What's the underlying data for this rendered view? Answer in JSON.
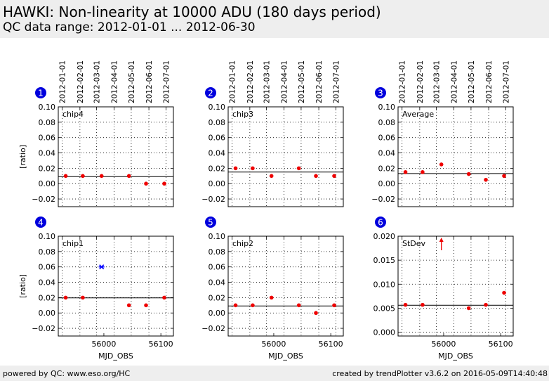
{
  "header": {
    "title": "HAWKI: Non-linearity at 10000 ADU (180 days period)",
    "subtitle": "QC data range: 2012-01-01 ... 2012-06-30"
  },
  "footer": {
    "left": "powered by QC: www.eso.org/HC",
    "right": "created by trendPlotter v3.6.2 on 2016-05-09T14:40:48"
  },
  "colors": {
    "badge": "#0000dd",
    "point": "#ee0000",
    "outlier": "#0000ff",
    "reference": "#000000"
  },
  "date_ticks": {
    "labels": [
      "2012-01-01",
      "2012-02-01",
      "2012-03-01",
      "2012-04-01",
      "2012-05-01",
      "2012-06-01",
      "2012-07-01"
    ],
    "mjd": [
      55927,
      55958,
      55987,
      56018,
      56048,
      56079,
      56109
    ]
  },
  "xlabel": "MJD_OBS",
  "chart_data": [
    {
      "type": "scatter",
      "panel": "1",
      "series_label": "chip4",
      "ylabel": "[ratio]",
      "xlim": [
        55920,
        56122
      ],
      "ylim": [
        -0.03,
        0.1
      ],
      "yticks": [
        -0.02,
        0.0,
        0.02,
        0.04,
        0.06,
        0.08,
        0.1
      ],
      "ytick_labels": [
        "−0.02",
        "0.00",
        "0.02",
        "0.04",
        "0.06",
        "0.08",
        "0.10"
      ],
      "xticks": [],
      "xtick_labels": [],
      "reference_line": 0.0091,
      "points": [
        {
          "x": 55933,
          "y": 0.01
        },
        {
          "x": 55963,
          "y": 0.01
        },
        {
          "x": 55996,
          "y": 0.01
        },
        {
          "x": 56044,
          "y": 0.01
        },
        {
          "x": 56074,
          "y": 0.0
        },
        {
          "x": 56106,
          "y": 0.0
        }
      ],
      "outliers": []
    },
    {
      "type": "scatter",
      "panel": "2",
      "series_label": "chip3",
      "ylabel": "",
      "xlim": [
        55920,
        56122
      ],
      "ylim": [
        -0.03,
        0.1
      ],
      "yticks": [
        -0.02,
        0.0,
        0.02,
        0.04,
        0.06,
        0.08,
        0.1
      ],
      "ytick_labels": [
        "−0.02",
        "0.00",
        "0.02",
        "0.04",
        "0.06",
        "0.08",
        "0.10"
      ],
      "xticks": [],
      "xtick_labels": [],
      "reference_line": 0.0151,
      "points": [
        {
          "x": 55933,
          "y": 0.02
        },
        {
          "x": 55963,
          "y": 0.02
        },
        {
          "x": 55996,
          "y": 0.01
        },
        {
          "x": 56044,
          "y": 0.02
        },
        {
          "x": 56074,
          "y": 0.01
        },
        {
          "x": 56106,
          "y": 0.01
        }
      ],
      "outliers": []
    },
    {
      "type": "scatter",
      "panel": "3",
      "series_label": "Average",
      "ylabel": "",
      "xlim": [
        55920,
        56122
      ],
      "ylim": [
        -0.03,
        0.1
      ],
      "yticks": [
        -0.02,
        0.0,
        0.02,
        0.04,
        0.06,
        0.08,
        0.1
      ],
      "ytick_labels": [
        "−0.02",
        "0.00",
        "0.02",
        "0.04",
        "0.06",
        "0.08",
        "0.10"
      ],
      "xticks": [],
      "xtick_labels": [],
      "reference_line": 0.0131,
      "points": [
        {
          "x": 55933,
          "y": 0.015
        },
        {
          "x": 55963,
          "y": 0.015
        },
        {
          "x": 55996,
          "y": 0.025
        },
        {
          "x": 56044,
          "y": 0.0125
        },
        {
          "x": 56074,
          "y": 0.005
        },
        {
          "x": 56106,
          "y": 0.01
        }
      ],
      "outliers": []
    },
    {
      "type": "scatter",
      "panel": "4",
      "series_label": "chip1",
      "ylabel": "[ratio]",
      "xlim": [
        55920,
        56122
      ],
      "ylim": [
        -0.03,
        0.1
      ],
      "yticks": [
        -0.02,
        0.0,
        0.02,
        0.04,
        0.06,
        0.08,
        0.1
      ],
      "ytick_labels": [
        "−0.02",
        "0.00",
        "0.02",
        "0.04",
        "0.06",
        "0.08",
        "0.10"
      ],
      "xticks": [
        56000,
        56100
      ],
      "xtick_labels": [
        "56000",
        "56100"
      ],
      "reference_line": 0.0197,
      "points": [
        {
          "x": 55933,
          "y": 0.02
        },
        {
          "x": 55963,
          "y": 0.02
        },
        {
          "x": 56044,
          "y": 0.01
        },
        {
          "x": 56074,
          "y": 0.01
        },
        {
          "x": 56106,
          "y": 0.02
        }
      ],
      "outliers": [
        {
          "x": 55996,
          "y": 0.06
        }
      ]
    },
    {
      "type": "scatter",
      "panel": "5",
      "series_label": "chip2",
      "ylabel": "",
      "xlim": [
        55920,
        56122
      ],
      "ylim": [
        -0.03,
        0.1
      ],
      "yticks": [
        -0.02,
        0.0,
        0.02,
        0.04,
        0.06,
        0.08,
        0.1
      ],
      "ytick_labels": [
        "−0.02",
        "0.00",
        "0.02",
        "0.04",
        "0.06",
        "0.08",
        "0.10"
      ],
      "xticks": [
        56000,
        56100
      ],
      "xtick_labels": [
        "56000",
        "56100"
      ],
      "reference_line": 0.0091,
      "points": [
        {
          "x": 55933,
          "y": 0.01
        },
        {
          "x": 55963,
          "y": 0.01
        },
        {
          "x": 55996,
          "y": 0.02
        },
        {
          "x": 56044,
          "y": 0.01
        },
        {
          "x": 56074,
          "y": 0.0
        },
        {
          "x": 56106,
          "y": 0.01
        }
      ],
      "outliers": []
    },
    {
      "type": "scatter",
      "panel": "6",
      "series_label": "StDev",
      "ylabel": "",
      "xlim": [
        55920,
        56122
      ],
      "ylim": [
        -0.0008,
        0.02
      ],
      "yticks": [
        0.0,
        0.005,
        0.01,
        0.015,
        0.02
      ],
      "ytick_labels": [
        "0.000",
        "0.005",
        "0.010",
        "0.015",
        "0.020"
      ],
      "xticks": [
        56000,
        56100
      ],
      "xtick_labels": [
        "56000",
        "56100"
      ],
      "reference_line": 0.0056,
      "points": [
        {
          "x": 55933,
          "y": 0.0057
        },
        {
          "x": 55963,
          "y": 0.0057
        },
        {
          "x": 56044,
          "y": 0.005
        },
        {
          "x": 56074,
          "y": 0.0057
        },
        {
          "x": 56106,
          "y": 0.0082
        }
      ],
      "outliers": [],
      "offscale": [
        {
          "x": 55996,
          "direction": "up"
        }
      ]
    }
  ]
}
